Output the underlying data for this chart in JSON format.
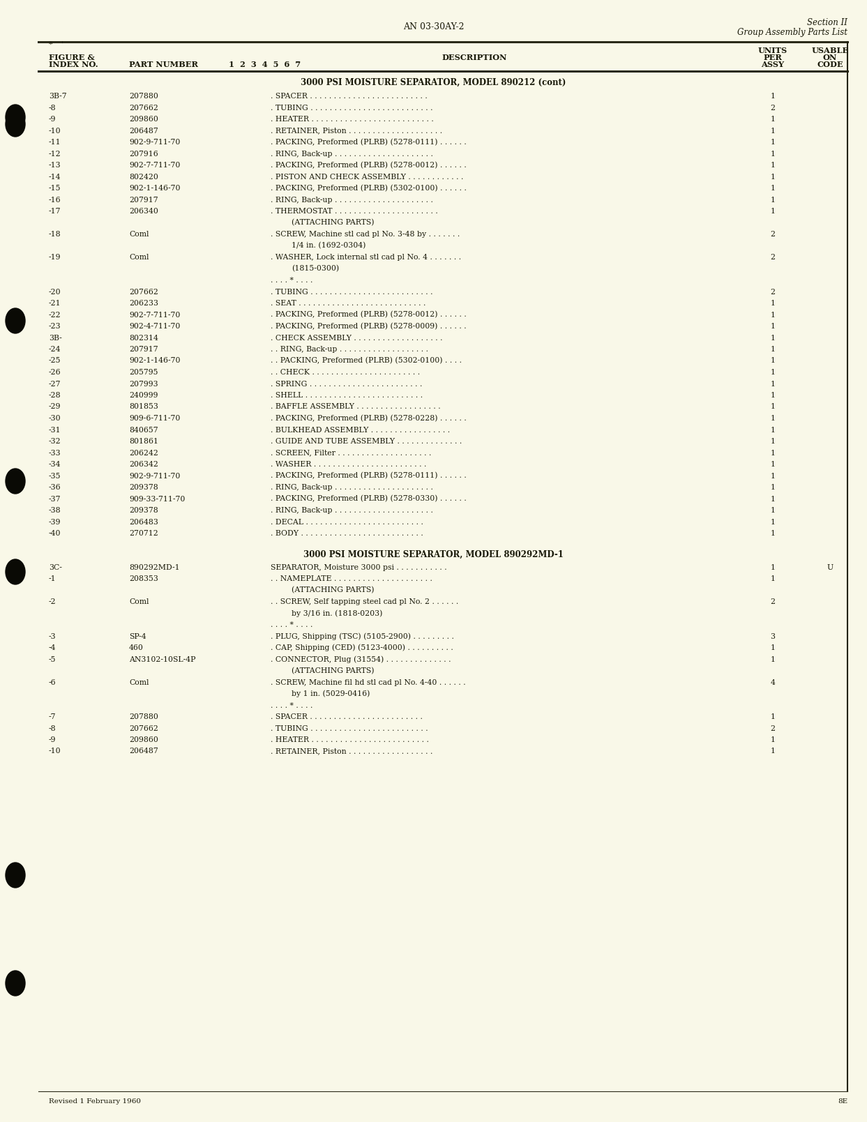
{
  "bg_color": "#f9f8e8",
  "header_doc_num": "AN 03-30AY-2",
  "header_right_line1": "Section II",
  "header_right_line2": "Group Assembly Parts List",
  "section1_title": "3000 PSI MOISTURE SEPARATOR, MODEL 890212 (cont)",
  "section1_rows": [
    {
      "fig": "3B-7",
      "part": "207880",
      "desc": ". SPACER . . . . . . . . . . . . . . . . . . . . . . . . .",
      "qty": "1",
      "code": "",
      "sub": 0
    },
    {
      "fig": "-8",
      "part": "207662",
      "desc": ". TUBING . . . . . . . . . . . . . . . . . . . . . . . . . .",
      "qty": "2",
      "code": "",
      "sub": 0
    },
    {
      "fig": "-9",
      "part": "209860",
      "desc": ". HEATER . . . . . . . . . . . . . . . . . . . . . . . . . .",
      "qty": "1",
      "code": "",
      "sub": 0
    },
    {
      "fig": "-10",
      "part": "206487",
      "desc": ". RETAINER, Piston . . . . . . . . . . . . . . . . . . . .",
      "qty": "1",
      "code": "",
      "sub": 0
    },
    {
      "fig": "-11",
      "part": "902-9-711-70",
      "desc": ". PACKING, Preformed (PLRB) (5278-0111) . . . . . .",
      "qty": "1",
      "code": "",
      "sub": 0
    },
    {
      "fig": "-12",
      "part": "207916",
      "desc": ". RING, Back-up . . . . . . . . . . . . . . . . . . . . .",
      "qty": "1",
      "code": "",
      "sub": 0
    },
    {
      "fig": "-13",
      "part": "902-7-711-70",
      "desc": ". PACKING, Preformed (PLRB) (5278-0012) . . . . . .",
      "qty": "1",
      "code": "",
      "sub": 0
    },
    {
      "fig": "-14",
      "part": "802420",
      "desc": ". PISTON AND CHECK ASSEMBLY . . . . . . . . . . . .",
      "qty": "1",
      "code": "",
      "sub": 0
    },
    {
      "fig": "-15",
      "part": "902-1-146-70",
      "desc": ". PACKING, Preformed (PLRB) (5302-0100) . . . . . .",
      "qty": "1",
      "code": "",
      "sub": 0
    },
    {
      "fig": "-16",
      "part": "207917",
      "desc": ". RING, Back-up . . . . . . . . . . . . . . . . . . . . .",
      "qty": "1",
      "code": "",
      "sub": 0
    },
    {
      "fig": "-17",
      "part": "206340",
      "desc": ". THERMOSTAT . . . . . . . . . . . . . . . . . . . . . .",
      "qty": "1",
      "code": "",
      "sub": 0
    },
    {
      "fig": "",
      "part": "",
      "desc": "(ATTACHING PARTS)",
      "qty": "",
      "code": "",
      "sub": 1
    },
    {
      "fig": "-18",
      "part": "Coml",
      "desc": ". SCREW, Machine stl cad pl No. 3-48 by . . . . . . .",
      "qty": "2",
      "code": "",
      "sub": 0
    },
    {
      "fig": "",
      "part": "",
      "desc": "1/4 in. (1692-0304)",
      "qty": "",
      "code": "",
      "sub": 2
    },
    {
      "fig": "-19",
      "part": "Coml",
      "desc": ". WASHER, Lock internal stl cad pl No. 4 . . . . . . .",
      "qty": "2",
      "code": "",
      "sub": 0
    },
    {
      "fig": "",
      "part": "",
      "desc": "(1815-0300)",
      "qty": "",
      "code": "",
      "sub": 2
    },
    {
      "fig": "",
      "part": "",
      "desc": ". . . . * . . . .",
      "qty": "",
      "code": "",
      "sub": 0
    },
    {
      "fig": "-20",
      "part": "207662",
      "desc": ". TUBING . . . . . . . . . . . . . . . . . . . . . . . . . .",
      "qty": "2",
      "code": "",
      "sub": 0
    },
    {
      "fig": "-21",
      "part": "206233",
      "desc": ". SEAT . . . . . . . . . . . . . . . . . . . . . . . . . . .",
      "qty": "1",
      "code": "",
      "sub": 0
    },
    {
      "fig": "-22",
      "part": "902-7-711-70",
      "desc": ". PACKING, Preformed (PLRB) (5278-0012) . . . . . .",
      "qty": "1",
      "code": "",
      "sub": 0
    },
    {
      "fig": "-23",
      "part": "902-4-711-70",
      "desc": ". PACKING, Preformed (PLRB) (5278-0009) . . . . . .",
      "qty": "1",
      "code": "",
      "sub": 0
    },
    {
      "fig": "3B-",
      "part": "802314",
      "desc": ". CHECK ASSEMBLY . . . . . . . . . . . . . . . . . . .",
      "qty": "1",
      "code": "",
      "sub": 0
    },
    {
      "fig": "-24",
      "part": "207917",
      "desc": ". . RING, Back-up . . . . . . . . . . . . . . . . . . .",
      "qty": "1",
      "code": "",
      "sub": 0
    },
    {
      "fig": "-25",
      "part": "902-1-146-70",
      "desc": ". . PACKING, Preformed (PLRB) (5302-0100) . . . .",
      "qty": "1",
      "code": "",
      "sub": 0
    },
    {
      "fig": "-26",
      "part": "205795",
      "desc": ". . CHECK . . . . . . . . . . . . . . . . . . . . . . .",
      "qty": "1",
      "code": "",
      "sub": 0
    },
    {
      "fig": "-27",
      "part": "207993",
      "desc": ". SPRING . . . . . . . . . . . . . . . . . . . . . . . .",
      "qty": "1",
      "code": "",
      "sub": 0
    },
    {
      "fig": "-28",
      "part": "240999",
      "desc": ". SHELL . . . . . . . . . . . . . . . . . . . . . . . . .",
      "qty": "1",
      "code": "",
      "sub": 0
    },
    {
      "fig": "-29",
      "part": "801853",
      "desc": ". BAFFLE ASSEMBLY . . . . . . . . . . . . . . . . . .",
      "qty": "1",
      "code": "",
      "sub": 0
    },
    {
      "fig": "-30",
      "part": "909-6-711-70",
      "desc": ". PACKING, Preformed (PLRB) (5278-0228) . . . . . .",
      "qty": "1",
      "code": "",
      "sub": 0
    },
    {
      "fig": "-31",
      "part": "840657",
      "desc": ". BULKHEAD ASSEMBLY . . . . . . . . . . . . . . . . .",
      "qty": "1",
      "code": "",
      "sub": 0
    },
    {
      "fig": "-32",
      "part": "801861",
      "desc": ". GUIDE AND TUBE ASSEMBLY . . . . . . . . . . . . . .",
      "qty": "1",
      "code": "",
      "sub": 0
    },
    {
      "fig": "-33",
      "part": "206242",
      "desc": ". SCREEN, Filter . . . . . . . . . . . . . . . . . . . .",
      "qty": "1",
      "code": "",
      "sub": 0
    },
    {
      "fig": "-34",
      "part": "206342",
      "desc": ". WASHER . . . . . . . . . . . . . . . . . . . . . . . .",
      "qty": "1",
      "code": "",
      "sub": 0
    },
    {
      "fig": "-35",
      "part": "902-9-711-70",
      "desc": ". PACKING, Preformed (PLRB) (5278-0111) . . . . . .",
      "qty": "1",
      "code": "",
      "sub": 0
    },
    {
      "fig": "-36",
      "part": "209378",
      "desc": ". RING, Back-up . . . . . . . . . . . . . . . . . . . . .",
      "qty": "1",
      "code": "",
      "sub": 0
    },
    {
      "fig": "-37",
      "part": "909-33-711-70",
      "desc": ". PACKING, Preformed (PLRB) (5278-0330) . . . . . .",
      "qty": "1",
      "code": "",
      "sub": 0
    },
    {
      "fig": "-38",
      "part": "209378",
      "desc": ". RING, Back-up . . . . . . . . . . . . . . . . . . . . .",
      "qty": "1",
      "code": "",
      "sub": 0
    },
    {
      "fig": "-39",
      "part": "206483",
      "desc": ". DECAL . . . . . . . . . . . . . . . . . . . . . . . . .",
      "qty": "1",
      "code": "",
      "sub": 0
    },
    {
      "fig": "-40",
      "part": "270712",
      "desc": ". BODY . . . . . . . . . . . . . . . . . . . . . . . . . .",
      "qty": "1",
      "code": "",
      "sub": 0
    }
  ],
  "section2_title": "3000 PSI MOISTURE SEPARATOR, MODEL 890292MD-1",
  "section2_rows": [
    {
      "fig": "3C-",
      "part": "890292MD-1",
      "desc": "SEPARATOR, Moisture 3000 psi . . . . . . . . . . .",
      "qty": "1",
      "code": "U",
      "sub": 0
    },
    {
      "fig": "-1",
      "part": "208353",
      "desc": ". . NAMEPLATE . . . . . . . . . . . . . . . . . . . . .",
      "qty": "1",
      "code": "",
      "sub": 0
    },
    {
      "fig": "",
      "part": "",
      "desc": "(ATTACHING PARTS)",
      "qty": "",
      "code": "",
      "sub": 1
    },
    {
      "fig": "-2",
      "part": "Coml",
      "desc": ". . SCREW, Self tapping steel cad pl No. 2 . . . . . .",
      "qty": "2",
      "code": "",
      "sub": 0
    },
    {
      "fig": "",
      "part": "",
      "desc": "by 3/16 in. (1818-0203)",
      "qty": "",
      "code": "",
      "sub": 2
    },
    {
      "fig": "",
      "part": "",
      "desc": ". . . . * . . . .",
      "qty": "",
      "code": "",
      "sub": 0
    },
    {
      "fig": "-3",
      "part": "SP-4",
      "desc": ". PLUG, Shipping (TSC) (5105-2900) . . . . . . . . .",
      "qty": "3",
      "code": "",
      "sub": 0
    },
    {
      "fig": "-4",
      "part": "460",
      "desc": ". CAP, Shipping (CED) (5123-4000) . . . . . . . . . .",
      "qty": "1",
      "code": "",
      "sub": 0
    },
    {
      "fig": "-5",
      "part": "AN3102-10SL-4P",
      "desc": ". CONNECTOR, Plug (31554) . . . . . . . . . . . . . .",
      "qty": "1",
      "code": "",
      "sub": 0
    },
    {
      "fig": "",
      "part": "",
      "desc": "(ATTACHING PARTS)",
      "qty": "",
      "code": "",
      "sub": 1
    },
    {
      "fig": "-6",
      "part": "Coml",
      "desc": ". SCREW, Machine fil hd stl cad pl No. 4-40 . . . . . .",
      "qty": "4",
      "code": "",
      "sub": 0
    },
    {
      "fig": "",
      "part": "",
      "desc": "by 1 in. (5029-0416)",
      "qty": "",
      "code": "",
      "sub": 2
    },
    {
      "fig": "",
      "part": "",
      "desc": ". . . . * . . . .",
      "qty": "",
      "code": "",
      "sub": 0
    },
    {
      "fig": "-7",
      "part": "207880",
      "desc": ". SPACER . . . . . . . . . . . . . . . . . . . . . . . .",
      "qty": "1",
      "code": "",
      "sub": 0
    },
    {
      "fig": "-8",
      "part": "207662",
      "desc": ". TUBING . . . . . . . . . . . . . . . . . . . . . . . . .",
      "qty": "2",
      "code": "",
      "sub": 0
    },
    {
      "fig": "-9",
      "part": "209860",
      "desc": ". HEATER . . . . . . . . . . . . . . . . . . . . . . . . .",
      "qty": "1",
      "code": "",
      "sub": 0
    },
    {
      "fig": "-10",
      "part": "206487",
      "desc": ". RETAINER, Piston . . . . . . . . . . . . . . . . . .",
      "qty": "1",
      "code": "",
      "sub": 0
    }
  ],
  "footer_left": "Revised 1 February 1960",
  "footer_right": "8E",
  "text_color": "#1a1a0a",
  "line_color": "#2a2a18",
  "bullet_color": "#0a0a05",
  "right_border_color": "#222210"
}
